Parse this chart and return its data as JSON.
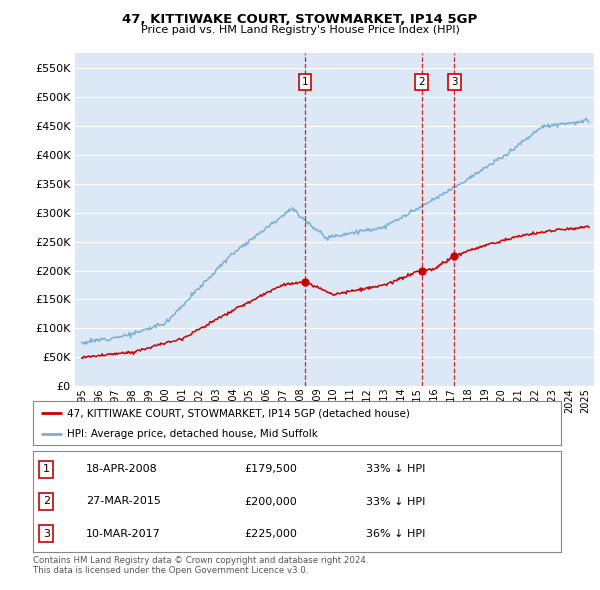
{
  "title": "47, KITTIWAKE COURT, STOWMARKET, IP14 5GP",
  "subtitle": "Price paid vs. HM Land Registry's House Price Index (HPI)",
  "ylabel_ticks": [
    0,
    50000,
    100000,
    150000,
    200000,
    250000,
    300000,
    350000,
    400000,
    450000,
    500000,
    550000
  ],
  "ylim": [
    0,
    575000
  ],
  "xlim_start": 1994.6,
  "xlim_end": 2025.5,
  "sale_dates": [
    2008.29,
    2015.23,
    2017.19
  ],
  "sale_prices": [
    179500,
    200000,
    225000
  ],
  "sale_labels": [
    "1",
    "2",
    "3"
  ],
  "legend_line1": "47, KITTIWAKE COURT, STOWMARKET, IP14 5GP (detached house)",
  "legend_line2": "HPI: Average price, detached house, Mid Suffolk",
  "table_data": [
    [
      "1",
      "18-APR-2008",
      "£179,500",
      "33% ↓ HPI"
    ],
    [
      "2",
      "27-MAR-2015",
      "£200,000",
      "33% ↓ HPI"
    ],
    [
      "3",
      "10-MAR-2017",
      "£225,000",
      "36% ↓ HPI"
    ]
  ],
  "footnote1": "Contains HM Land Registry data © Crown copyright and database right 2024.",
  "footnote2": "This data is licensed under the Open Government Licence v3.0.",
  "red_color": "#cc0000",
  "blue_color": "#7bafd4",
  "bg_color": "#dce8f5",
  "grid_color": "#ffffff",
  "vline_color": "#cc0000"
}
